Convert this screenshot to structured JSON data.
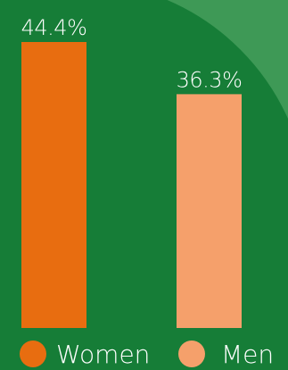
{
  "colors": {
    "background": "#167d37",
    "arc": "#3e9956",
    "women": "#e86d10",
    "men": "#f5a06b",
    "text": "#ffffff"
  },
  "chart_data": {
    "type": "bar",
    "categories": [
      "Women",
      "Men"
    ],
    "values": [
      44.4,
      36.3
    ],
    "value_labels": [
      "44.4%",
      "36.3%"
    ],
    "colors": [
      "#e86d10",
      "#f5a06b"
    ],
    "title": "",
    "xlabel": "",
    "ylabel": "",
    "ylim": [
      0,
      44.4
    ],
    "grid": false,
    "legend": {
      "position": "bottom",
      "entries": [
        "Women",
        "Men"
      ]
    }
  }
}
